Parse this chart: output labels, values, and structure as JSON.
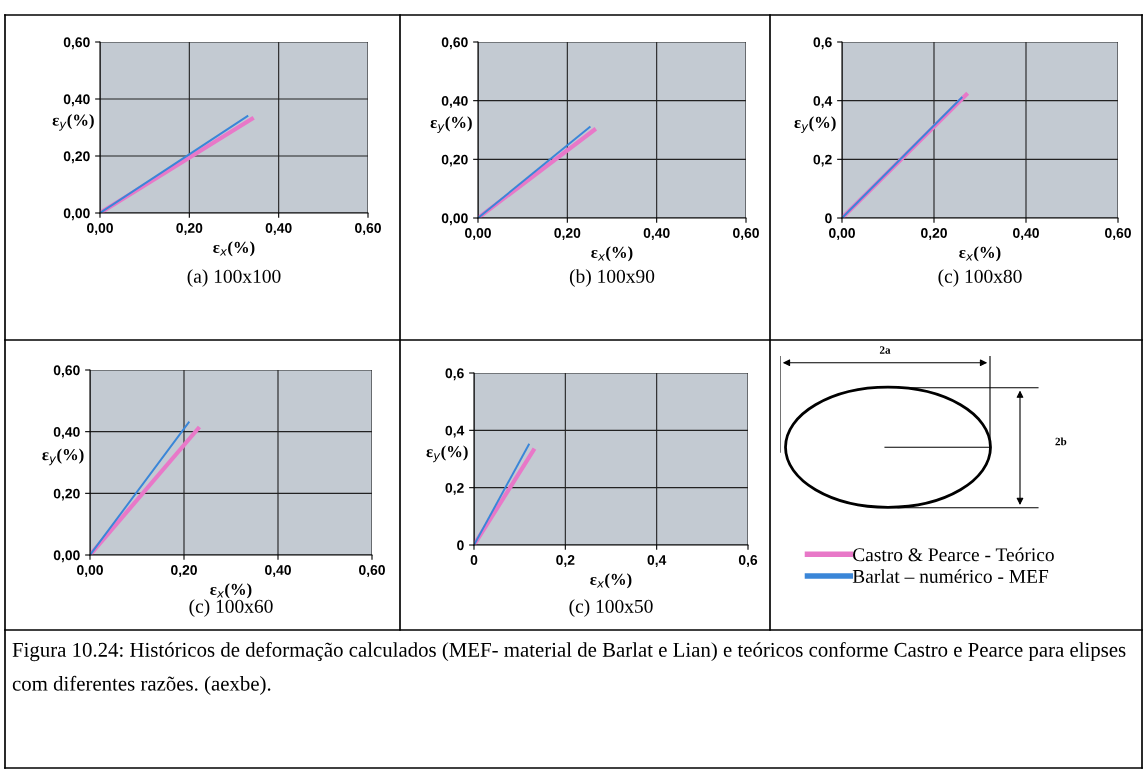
{
  "chart_data": [
    {
      "type": "line",
      "xlabel": "ε$_{x}$(%)",
      "ylabel": "ε$_{y}$(%)",
      "annotations": [
        "(a) 100x100"
      ],
      "xlim": [
        0,
        0.6
      ],
      "ylim": [
        0,
        0.6
      ],
      "grid": true,
      "xticks": [
        {
          "value": 0,
          "label": "0,00"
        },
        {
          "value": 0.2,
          "label": "0,20"
        },
        {
          "value": 0.4,
          "label": "0,40"
        },
        {
          "value": 0.6,
          "label": "0,60"
        }
      ],
      "yticks": [
        {
          "value": 0,
          "label": "0,00"
        },
        {
          "value": 0.2,
          "label": "0,20"
        },
        {
          "value": 0.4,
          "label": "0,40"
        },
        {
          "value": 0.6,
          "label": "0,60"
        }
      ],
      "series": [
        {
          "color": "#e878c8",
          "x": [
            0,
            0.34
          ],
          "values": [
            0,
            0.33
          ]
        },
        {
          "color": "#3a86d8",
          "x": [
            0,
            0.33
          ],
          "values": [
            0,
            0.34
          ]
        }
      ]
    },
    {
      "type": "line",
      "xlabel": "ε$_{x}$(%)",
      "ylabel": "ε$_{y}$(%)",
      "annotations": [
        "(b) 100x90"
      ],
      "xlim": [
        0,
        0.6
      ],
      "ylim": [
        0,
        0.6
      ],
      "grid": true,
      "xticks": [
        {
          "value": 0,
          "label": "0,00"
        },
        {
          "value": 0.2,
          "label": "0,20"
        },
        {
          "value": 0.4,
          "label": "0,40"
        },
        {
          "value": 0.6,
          "label": "0,60"
        }
      ],
      "yticks": [
        {
          "value": 0,
          "label": "0,00"
        },
        {
          "value": 0.2,
          "label": "0,20"
        },
        {
          "value": 0.4,
          "label": "0,40"
        },
        {
          "value": 0.6,
          "label": "0,60"
        }
      ],
      "series": [
        {
          "color": "#e878c8",
          "x": [
            0,
            0.26
          ],
          "values": [
            0,
            0.3
          ]
        },
        {
          "color": "#3a86d8",
          "x": [
            0,
            0.25
          ],
          "values": [
            0,
            0.31
          ]
        }
      ]
    },
    {
      "type": "line",
      "xlabel": "ε$_{x}$(%)",
      "ylabel": "ε$_{y}$(%)",
      "annotations": [
        "(c) 100x80"
      ],
      "xlim": [
        0,
        0.6
      ],
      "ylim": [
        0,
        0.6
      ],
      "grid": true,
      "xticks": [
        {
          "value": 0,
          "label": "0,00"
        },
        {
          "value": 0.2,
          "label": "0,20"
        },
        {
          "value": 0.4,
          "label": "0,40"
        },
        {
          "value": 0.6,
          "label": "0,60"
        }
      ],
      "yticks": [
        0,
        {
          "value": 0.2,
          "label": "0,2"
        },
        {
          "value": 0.4,
          "label": "0,4"
        },
        {
          "value": 0.6,
          "label": "0,6"
        }
      ],
      "series": [
        {
          "color": "#e878c8",
          "x": [
            0,
            0.27
          ],
          "values": [
            0,
            0.42
          ]
        },
        {
          "color": "#3a86d8",
          "x": [
            0,
            0.26
          ],
          "values": [
            0,
            0.41
          ]
        }
      ]
    },
    {
      "type": "line",
      "xlabel": "ε$_{x}$(%)",
      "ylabel": "ε$_{y}$(%)",
      "annotations": [
        "(c) 100x60"
      ],
      "xlim": [
        0,
        0.6
      ],
      "ylim": [
        0,
        0.6
      ],
      "grid": true,
      "xticks": [
        {
          "value": 0,
          "label": "0,00"
        },
        {
          "value": 0.2,
          "label": "0,20"
        },
        {
          "value": 0.4,
          "label": "0,40"
        },
        {
          "value": 0.6,
          "label": "0,60"
        }
      ],
      "yticks": [
        {
          "value": 0,
          "label": "0,00"
        },
        {
          "value": 0.2,
          "label": "0,20"
        },
        {
          "value": 0.4,
          "label": "0,40"
        },
        {
          "value": 0.6,
          "label": "0,60"
        }
      ],
      "series": [
        {
          "color": "#e878c8",
          "x": [
            0,
            0.23
          ],
          "values": [
            0,
            0.41
          ]
        },
        {
          "color": "#3a86d8",
          "x": [
            0,
            0.21
          ],
          "values": [
            0,
            0.43
          ]
        }
      ]
    },
    {
      "type": "line",
      "xlabel": "ε$_{x}$(%)",
      "ylabel": "ε$_{y}$(%)",
      "annotations": [
        "(c) 100x50"
      ],
      "xlim": [
        0,
        0.6
      ],
      "ylim": [
        0,
        0.6
      ],
      "grid": true,
      "legend": "right",
      "xticks": [
        0,
        {
          "value": 0.2,
          "label": "0,2"
        },
        {
          "value": 0.4,
          "label": "0,4"
        },
        {
          "value": 0.6,
          "label": "0,6"
        }
      ],
      "yticks": [
        0,
        {
          "value": 0.2,
          "label": "0,2"
        },
        {
          "value": 0.4,
          "label": "0,4"
        },
        {
          "value": 0.6,
          "label": "0,6"
        }
      ],
      "series": [
        {
          "name": "Castro & Pearce - Teórico",
          "color": "#e878c8",
          "x": [
            0,
            0.13
          ],
          "values": [
            0,
            0.33
          ]
        },
        {
          "name": "Barlat – numérico - MEF",
          "color": "#3a86d8",
          "x": [
            0,
            0.12
          ],
          "values": [
            0,
            0.35
          ]
        }
      ]
    },
    {
      "type": "other",
      "annotations": [
        "2a",
        "2b",
        "Figura 10.24: Históricos de deformação calculados (MEF- material de Barlat e Lian) e teóricos conforme Castro e Pearce para elipses com diferentes razões. (aexbe)."
      ]
    }
  ]
}
